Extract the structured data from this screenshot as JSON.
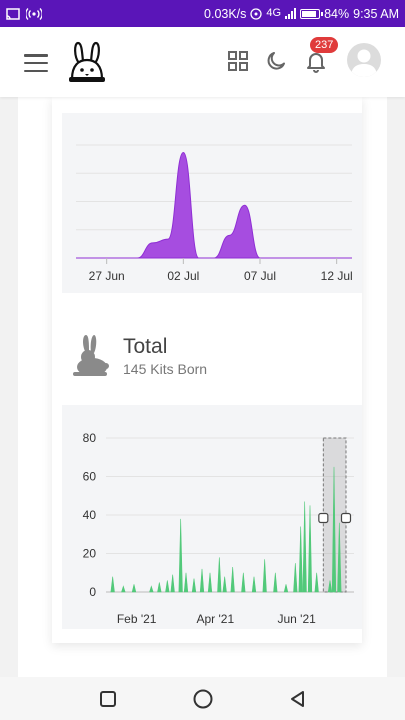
{
  "status_bar": {
    "speed": "0.03K/s",
    "battery": "84%",
    "battery_level": 0.84,
    "time": "9:35 AM",
    "network": "4G"
  },
  "header": {
    "notification_count": "237",
    "icons": [
      "menu-icon",
      "rabbit-logo",
      "grid-icon",
      "moon-icon",
      "bell-icon",
      "avatar"
    ]
  },
  "chart_top": {
    "type": "area",
    "color": "#a64de0",
    "x_ticks": [
      "27 Jun",
      "02 Jul",
      "07 Jul",
      "12 Jul"
    ]
  },
  "total": {
    "title": "Total",
    "subtitle": "145 Kits Born"
  },
  "chart_data": [
    {
      "type": "area",
      "x_ticks": [
        "27 Jun",
        "02 Jul",
        "07 Jul",
        "12 Jul"
      ],
      "x": [
        "2021-06-25",
        "2021-06-26",
        "2021-06-27",
        "2021-06-28",
        "2021-06-29",
        "2021-06-30",
        "2021-07-01",
        "2021-07-02",
        "2021-07-03",
        "2021-07-04",
        "2021-07-05",
        "2021-07-06",
        "2021-07-07",
        "2021-07-08",
        "2021-07-09",
        "2021-07-10",
        "2021-07-11",
        "2021-07-12",
        "2021-07-13"
      ],
      "values": [
        0,
        0,
        0,
        0,
        0,
        4,
        5,
        28,
        0,
        0,
        6,
        14,
        0,
        0,
        0,
        0,
        0,
        0,
        0
      ],
      "color": "#a64de0"
    },
    {
      "type": "area",
      "y_ticks": [
        "80",
        "60",
        "40",
        "20",
        "0"
      ],
      "x_ticks": [
        "Feb '21",
        "Apr '21",
        "Jun '21"
      ],
      "ylim": [
        0,
        80
      ],
      "color": "#52c97a",
      "spikes": [
        {
          "x": "2021-01-20",
          "y": 8
        },
        {
          "x": "2021-01-28",
          "y": 3
        },
        {
          "x": "2021-02-05",
          "y": 4
        },
        {
          "x": "2021-02-18",
          "y": 3
        },
        {
          "x": "2021-02-24",
          "y": 5
        },
        {
          "x": "2021-03-02",
          "y": 6
        },
        {
          "x": "2021-03-06",
          "y": 9
        },
        {
          "x": "2021-03-12",
          "y": 38
        },
        {
          "x": "2021-03-16",
          "y": 10
        },
        {
          "x": "2021-03-22",
          "y": 7
        },
        {
          "x": "2021-03-28",
          "y": 12
        },
        {
          "x": "2021-04-03",
          "y": 10
        },
        {
          "x": "2021-04-10",
          "y": 18
        },
        {
          "x": "2021-04-14",
          "y": 8
        },
        {
          "x": "2021-04-20",
          "y": 13
        },
        {
          "x": "2021-04-28",
          "y": 10
        },
        {
          "x": "2021-05-06",
          "y": 8
        },
        {
          "x": "2021-05-14",
          "y": 17
        },
        {
          "x": "2021-05-22",
          "y": 10
        },
        {
          "x": "2021-05-30",
          "y": 4
        },
        {
          "x": "2021-06-06",
          "y": 15
        },
        {
          "x": "2021-06-10",
          "y": 34
        },
        {
          "x": "2021-06-13",
          "y": 47
        },
        {
          "x": "2021-06-17",
          "y": 45
        },
        {
          "x": "2021-06-22",
          "y": 10
        },
        {
          "x": "2021-07-02",
          "y": 6
        },
        {
          "x": "2021-07-05",
          "y": 65
        },
        {
          "x": "2021-07-09",
          "y": 36
        }
      ],
      "x_range": [
        "2021-01-15",
        "2021-07-20"
      ],
      "selection": [
        "2021-06-27",
        "2021-07-14"
      ]
    }
  ],
  "nav": {
    "icons": [
      "recent-apps-icon",
      "home-icon",
      "back-icon"
    ]
  }
}
